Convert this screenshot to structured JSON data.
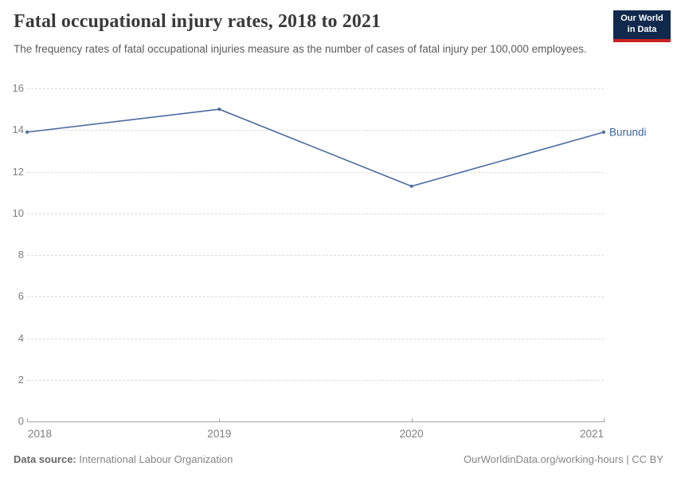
{
  "header": {
    "title": "Fatal occupational injury rates, 2018 to 2021",
    "subtitle": "The frequency rates of fatal occupational injuries measure as the number of cases of fatal injury per 100,000 employees.",
    "logo_line1": "Our World",
    "logo_line2": "in Data"
  },
  "chart_data": {
    "type": "line",
    "title": "Fatal occupational injury rates, 2018 to 2021",
    "x": [
      "2018",
      "2019",
      "2020",
      "2021"
    ],
    "series": [
      {
        "name": "Burundi",
        "values": [
          13.9,
          15.0,
          11.3,
          13.9
        ],
        "color": "#4b6ba3",
        "label_color": "#3d649b"
      }
    ],
    "ylabel": "",
    "xlabel": "",
    "ylim": [
      0,
      16
    ],
    "yticks": [
      0,
      2,
      4,
      6,
      8,
      10,
      12,
      14,
      16
    ],
    "grid": "horizontal-dashed",
    "legend": "end-of-line-label"
  },
  "footer": {
    "source_label": "Data source:",
    "source_value": " International Labour Organization",
    "attribution": "OurWorldinData.org/working-hours | CC BY"
  },
  "colors": {
    "line": "#4b6ba3",
    "series_label": "#3d649b",
    "gridline": "#dcdcdc",
    "axis": "#a3a3a3",
    "tick_text": "#7e7e7e",
    "logo_bg": "#12294e",
    "logo_red": "#ca2420"
  }
}
